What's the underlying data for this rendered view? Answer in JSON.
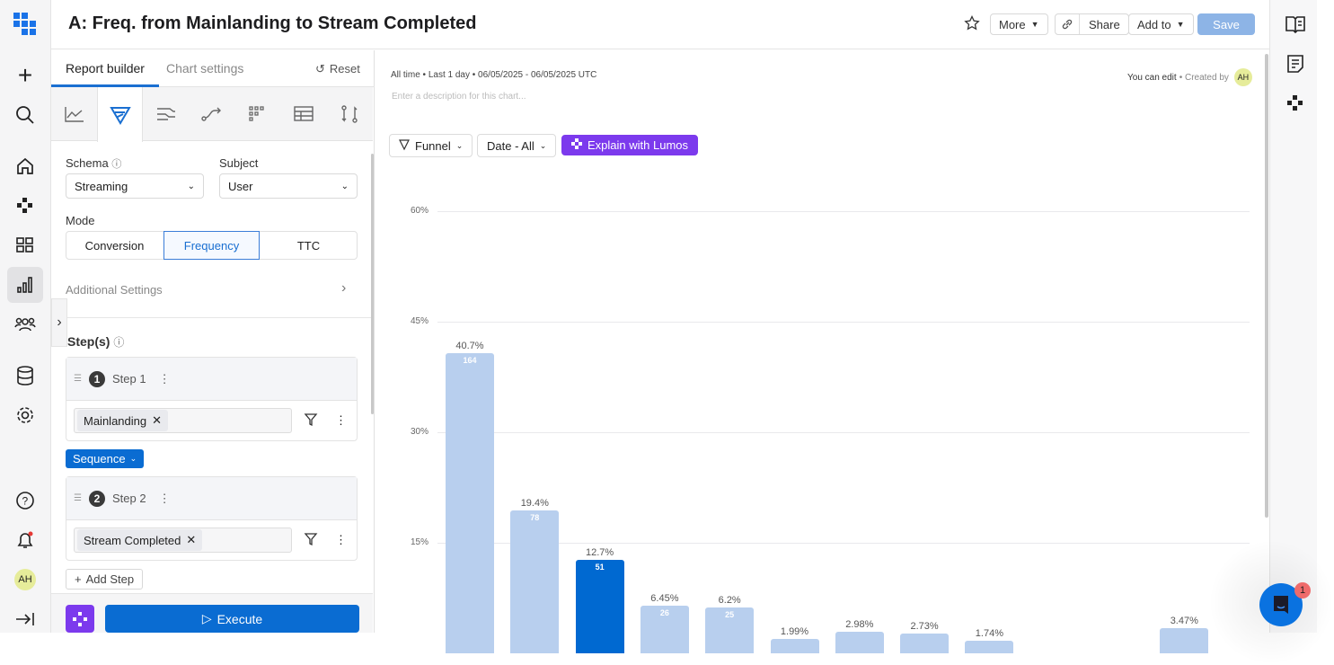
{
  "header": {
    "title": "A: Freq. from Mainlanding to Stream Completed",
    "more": "More",
    "share": "Share",
    "add_to": "Add to",
    "save": "Save"
  },
  "nav": {
    "avatar": "AH"
  },
  "panel": {
    "tab_report": "Report builder",
    "tab_chart": "Chart settings",
    "reset": "Reset",
    "schema_label": "Schema",
    "schema_value": "Streaming",
    "subject_label": "Subject",
    "subject_value": "User",
    "mode_label": "Mode",
    "modes": [
      "Conversion",
      "Frequency",
      "TTC"
    ],
    "additional": "Additional Settings",
    "steps_label": "Step(s)",
    "steps": [
      {
        "num": "1",
        "label": "Step 1",
        "event": "Mainlanding"
      },
      {
        "num": "2",
        "label": "Step 2",
        "event": "Stream Completed"
      }
    ],
    "sequence": "Sequence",
    "add_step": "Add Step",
    "execute": "Execute"
  },
  "main": {
    "meta": "All time • Last 1 day • 06/05/2025 - 06/05/2025 UTC",
    "description_placeholder": "Enter a description for this chart...",
    "can_edit": "You can edit",
    "created_by": "• Created by",
    "creator": "AH",
    "funnel": "Funnel",
    "date": "Date - All",
    "lumos": "Explain with Lumos"
  },
  "chat": {
    "badge": "1"
  },
  "colors": {
    "primary": "#0069d1",
    "bar_light": "#b8cfee",
    "lumos": "#7c3aed"
  },
  "chart_data": {
    "type": "bar",
    "ylabel": "",
    "xlabel": "",
    "ylim": [
      0,
      60
    ],
    "yticks": [
      "15%",
      "30%",
      "45%",
      "60%"
    ],
    "ytick_values": [
      15,
      30,
      45,
      60
    ],
    "values": [
      40.7,
      19.4,
      12.7,
      6.45,
      6.2,
      1.99,
      2.98,
      2.73,
      1.74,
      null,
      null,
      3.47
    ],
    "labels": [
      "40.7%",
      "19.4%",
      "12.7%",
      "6.45%",
      "6.2%",
      "1.99%",
      "2.98%",
      "2.73%",
      "1.74%",
      "",
      "",
      "3.47%"
    ],
    "counts": [
      "164",
      "78",
      "51",
      "26",
      "25",
      "",
      "",
      "",
      "",
      "",
      "",
      ""
    ],
    "highlight_index": 2
  }
}
